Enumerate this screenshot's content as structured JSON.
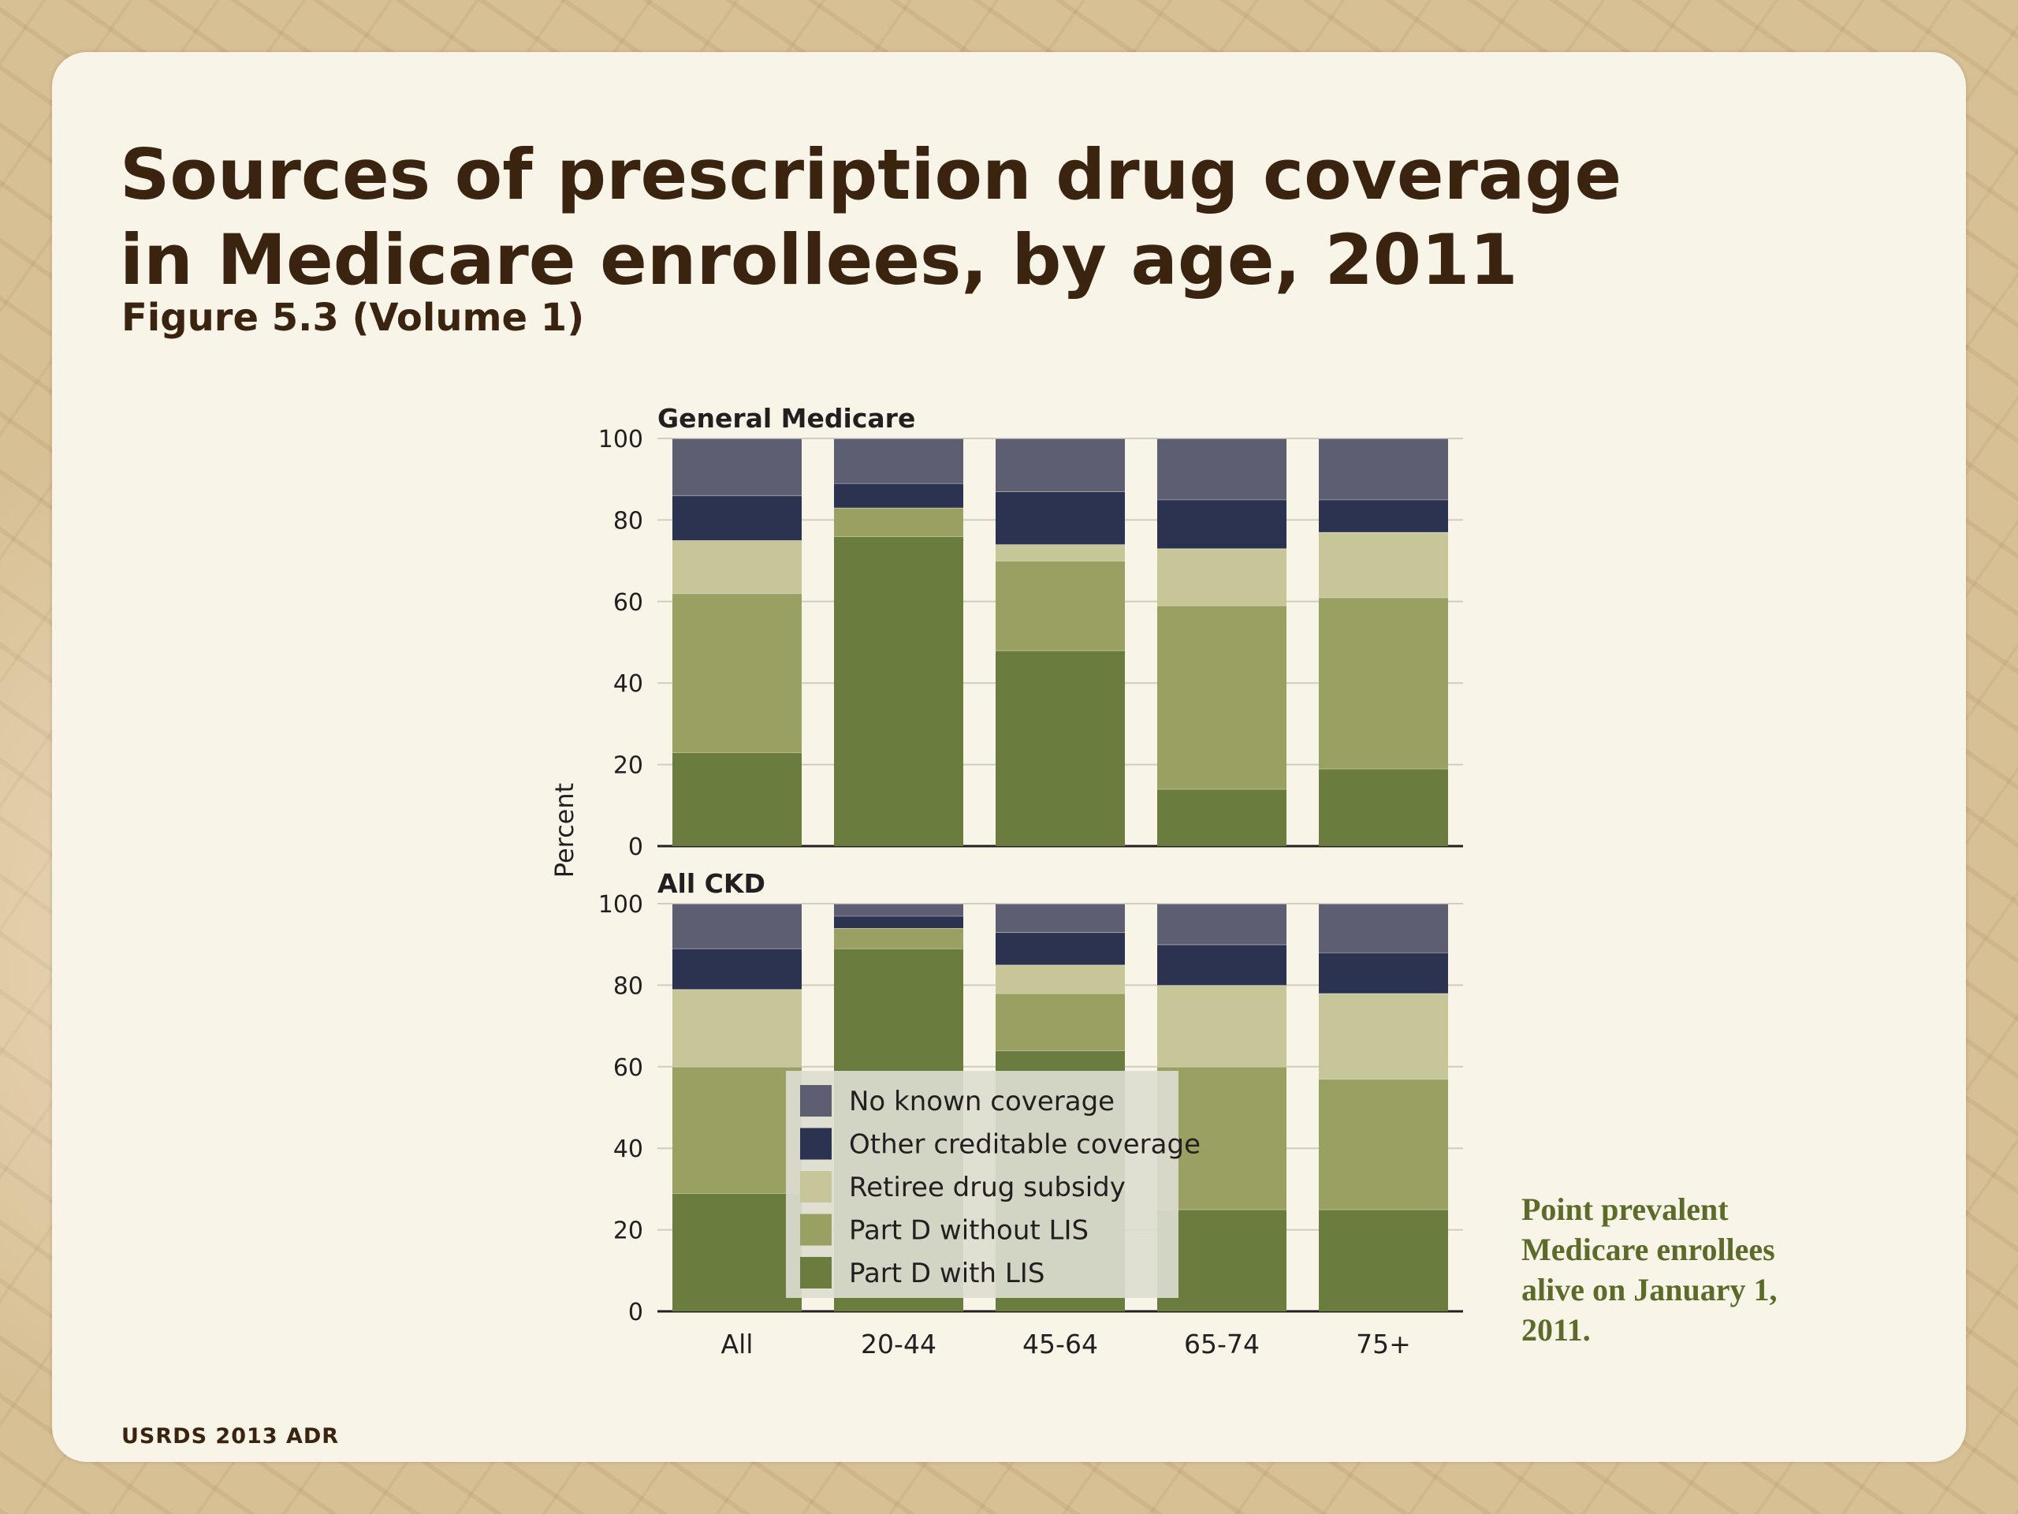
{
  "slide": {
    "title_line1": "Sources of prescription drug coverage",
    "title_line2": "in Medicare enrollees, by age, 2011",
    "subtitle": "Figure 5.3 (Volume 1)",
    "note": "Point prevalent Medicare enrollees alive on January 1, 2011.",
    "footer": "USRDS 2013 ADR"
  },
  "colors": {
    "no_known_coverage": "#5e5e73",
    "other_creditable": "#2c3350",
    "retiree_subsidy": "#c7c698",
    "partd_without_lis": "#9a9f62",
    "partd_with_lis": "#6a7d3f"
  },
  "chart_data": {
    "type": "bar",
    "stacked": true,
    "ylabel": "Percent",
    "ylim": [
      0,
      100
    ],
    "yticks": [
      0,
      20,
      40,
      60,
      80,
      100
    ],
    "categories": [
      "All",
      "20-44",
      "45-64",
      "65-74",
      "75+"
    ],
    "legend": [
      "No known coverage",
      "Other creditable coverage",
      "Retiree drug subsidy",
      "Part D without LIS",
      "Part D with LIS"
    ],
    "panels": [
      {
        "title": "General Medicare",
        "series": [
          {
            "name": "Part D with LIS",
            "values": [
              23,
              76,
              48,
              14,
              19
            ]
          },
          {
            "name": "Part D without LIS",
            "values": [
              39,
              7,
              22,
              45,
              42
            ]
          },
          {
            "name": "Retiree drug subsidy",
            "values": [
              13,
              0,
              4,
              14,
              16
            ]
          },
          {
            "name": "Other creditable coverage",
            "values": [
              11,
              6,
              13,
              12,
              8
            ]
          },
          {
            "name": "No known coverage",
            "values": [
              14,
              11,
              13,
              15,
              15
            ]
          }
        ]
      },
      {
        "title": "All CKD",
        "series": [
          {
            "name": "Part D with LIS",
            "values": [
              29,
              89,
              64,
              25,
              25
            ]
          },
          {
            "name": "Part D without LIS",
            "values": [
              31,
              5,
              14,
              35,
              32
            ]
          },
          {
            "name": "Retiree drug subsidy",
            "values": [
              19,
              0,
              7,
              20,
              21
            ]
          },
          {
            "name": "Other creditable coverage",
            "values": [
              10,
              3,
              8,
              10,
              10
            ]
          },
          {
            "name": "No known coverage",
            "values": [
              11,
              3,
              7,
              10,
              12
            ]
          }
        ]
      }
    ]
  }
}
